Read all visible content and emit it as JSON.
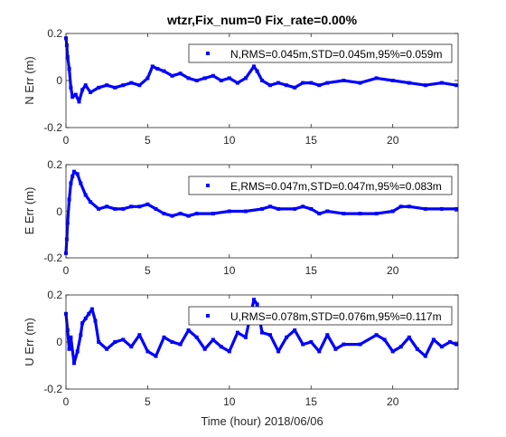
{
  "figure": {
    "title": "wtzr,Fix_num=0 Fix_rate=0.00%",
    "xlabel": "Time (hour)  2018/06/06",
    "series_color": "#0000ff"
  },
  "chart_data": [
    {
      "type": "scatter",
      "ylabel": "N Err (m)",
      "legend": "N,RMS=0.045m,STD=0.045m,95%=0.059m",
      "legend_position": "top-right",
      "xlim": [
        0,
        24
      ],
      "ylim": [
        -0.2,
        0.2
      ],
      "xticks": [
        "0",
        "5",
        "10",
        "15",
        "20"
      ],
      "yticks": [
        "0.2",
        "0",
        "-0.2"
      ],
      "x": [
        0.0,
        0.05,
        0.1,
        0.2,
        0.3,
        0.4,
        0.6,
        0.8,
        1.0,
        1.2,
        1.5,
        2.0,
        2.5,
        3.0,
        3.5,
        4.0,
        4.5,
        5.0,
        5.3,
        5.6,
        6.0,
        6.5,
        7.0,
        7.5,
        8.0,
        8.5,
        9.0,
        9.5,
        10.0,
        10.5,
        11.0,
        11.5,
        11.7,
        12.0,
        12.5,
        13.0,
        13.5,
        14.0,
        14.5,
        15.0,
        15.5,
        16.0,
        17.0,
        18.0,
        19.0,
        20.0,
        21.0,
        22.0,
        23.0,
        23.9
      ],
      "y": [
        0.18,
        0.15,
        0.1,
        0.05,
        -0.03,
        -0.07,
        -0.06,
        -0.09,
        -0.04,
        -0.02,
        -0.05,
        -0.03,
        -0.02,
        -0.03,
        -0.02,
        -0.01,
        -0.02,
        0.01,
        0.06,
        0.05,
        0.04,
        0.02,
        0.03,
        0.01,
        0.0,
        0.01,
        0.02,
        0.0,
        0.01,
        -0.01,
        0.01,
        0.06,
        0.04,
        0.0,
        -0.02,
        -0.01,
        -0.02,
        -0.03,
        -0.01,
        -0.01,
        -0.02,
        -0.01,
        0.0,
        -0.01,
        0.01,
        0.0,
        -0.01,
        -0.02,
        -0.01,
        -0.02
      ]
    },
    {
      "type": "scatter",
      "ylabel": "E Err (m)",
      "legend": "E,RMS=0.047m,STD=0.047m,95%=0.083m",
      "legend_position": "top-right",
      "xlim": [
        0,
        24
      ],
      "ylim": [
        -0.2,
        0.2
      ],
      "xticks": [
        "0",
        "5",
        "10",
        "15",
        "20"
      ],
      "yticks": [
        "0.2",
        "0",
        "-0.2"
      ],
      "x": [
        0.0,
        0.05,
        0.1,
        0.2,
        0.3,
        0.4,
        0.5,
        0.7,
        0.9,
        1.2,
        1.5,
        2.0,
        2.5,
        3.0,
        3.5,
        4.0,
        4.5,
        5.0,
        5.5,
        6.0,
        6.5,
        7.0,
        7.5,
        8.0,
        9.0,
        10.0,
        11.0,
        12.0,
        12.5,
        13.0,
        14.0,
        14.5,
        15.0,
        15.5,
        16.0,
        17.0,
        18.0,
        19.0,
        20.0,
        20.5,
        21.0,
        22.0,
        23.0,
        23.9
      ],
      "y": [
        -0.18,
        -0.12,
        -0.05,
        0.05,
        0.12,
        0.15,
        0.17,
        0.16,
        0.12,
        0.07,
        0.04,
        0.01,
        0.02,
        0.01,
        0.01,
        0.02,
        0.02,
        0.03,
        0.01,
        -0.01,
        -0.02,
        -0.01,
        -0.02,
        -0.01,
        -0.01,
        0.0,
        0.0,
        0.01,
        0.02,
        0.01,
        0.01,
        0.02,
        0.01,
        -0.01,
        0.0,
        -0.01,
        -0.01,
        -0.01,
        0.0,
        0.02,
        0.02,
        0.01,
        0.01,
        0.01
      ]
    },
    {
      "type": "scatter",
      "ylabel": "U Err (m)",
      "legend": "U,RMS=0.078m,STD=0.076m,95%=0.117m",
      "legend_position": "top-right",
      "xlim": [
        0,
        24
      ],
      "ylim": [
        -0.2,
        0.2
      ],
      "xticks": [
        "0",
        "5",
        "10",
        "15",
        "20"
      ],
      "yticks": [
        "0.2",
        "0",
        "-0.2"
      ],
      "x": [
        0.0,
        0.1,
        0.2,
        0.3,
        0.5,
        0.7,
        0.9,
        1.0,
        1.2,
        1.4,
        1.6,
        1.8,
        2.0,
        2.5,
        3.0,
        3.5,
        4.0,
        4.5,
        5.0,
        5.5,
        6.0,
        6.5,
        7.0,
        7.5,
        8.0,
        8.5,
        9.0,
        9.5,
        10.0,
        10.5,
        11.0,
        11.5,
        11.7,
        12.0,
        12.5,
        13.0,
        13.5,
        14.0,
        14.5,
        15.0,
        15.5,
        16.0,
        16.5,
        17.0,
        18.0,
        19.0,
        19.5,
        20.0,
        20.5,
        21.0,
        21.5,
        22.0,
        22.5,
        23.0,
        23.5,
        23.9
      ],
      "y": [
        0.12,
        0.05,
        -0.03,
        0.02,
        -0.09,
        -0.04,
        0.03,
        0.08,
        0.1,
        0.12,
        0.14,
        0.09,
        0.0,
        -0.03,
        0.0,
        0.01,
        -0.02,
        0.03,
        -0.04,
        -0.06,
        0.02,
        0.0,
        -0.01,
        0.05,
        0.02,
        -0.03,
        0.01,
        -0.02,
        -0.04,
        0.04,
        0.02,
        0.18,
        0.16,
        0.04,
        0.03,
        -0.04,
        0.02,
        0.05,
        -0.01,
        0.0,
        -0.04,
        0.03,
        -0.03,
        -0.01,
        -0.01,
        0.03,
        0.01,
        -0.04,
        -0.02,
        0.02,
        -0.03,
        -0.06,
        0.01,
        -0.02,
        0.0,
        -0.01
      ]
    }
  ]
}
